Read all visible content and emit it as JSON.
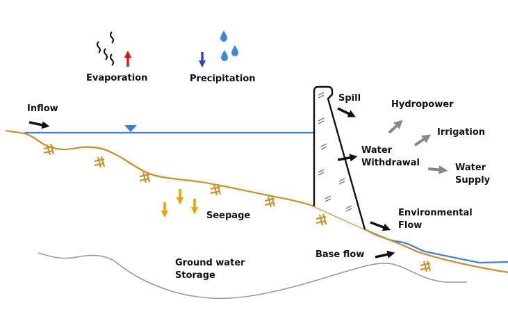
{
  "labels": {
    "evaporation": "Evaporation",
    "precipitation": "Precipitation",
    "inflow": "Inflow",
    "spill": "Spill",
    "hydropower": "Hydropower",
    "irrigation": "Irrigation",
    "water_withdrawal": [
      "Water",
      "Withdrawal"
    ],
    "water_supply": [
      "Water",
      "Supply"
    ],
    "environmental_flow": [
      "Environmental",
      "Flow"
    ],
    "seepage": "Seepage",
    "base_flow": "Base flow",
    "ground_water_storage": [
      "Ground water",
      "Storage"
    ]
  },
  "colors": {
    "water": "#3a7fe0",
    "ground": "#c8962a",
    "groundwater_line": "#999999",
    "evaporation_arrow": "#e81010",
    "precipitation_arrow": "#3344bb",
    "seepage_arrow": "#f0a000",
    "flow_arrow": "#111111",
    "use_arrow": "#888888"
  },
  "icons": [
    "vapor-squiggle-icon",
    "rain-drop-icon",
    "water-level-triangle-icon",
    "vegetation-symbol-icon",
    "dam-icon"
  ]
}
